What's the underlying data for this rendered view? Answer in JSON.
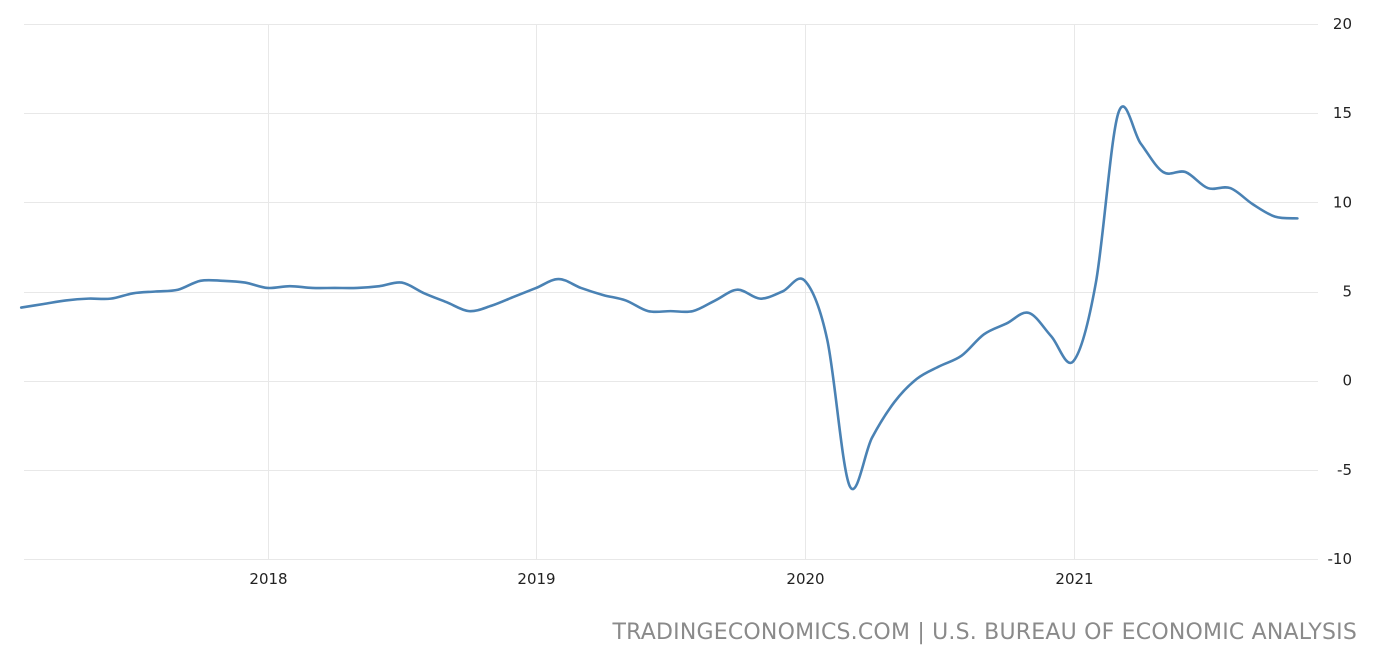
{
  "source_credit": "TRADINGECONOMICS.COM | U.S. BUREAU OF ECONOMIC ANALYSIS",
  "colors": {
    "series": "#4a82b4",
    "grid": "#e8e8e8",
    "tick_text": "#222222",
    "credit_text": "#8a8a8a"
  },
  "chart_data": {
    "type": "line",
    "title": "",
    "xlabel": "",
    "ylabel": "",
    "ylim": [
      -10,
      20
    ],
    "y_ticks": [
      20,
      15,
      10,
      5,
      0,
      -5,
      -10
    ],
    "y_tick_labels": [
      "20",
      "15",
      "10",
      "5",
      "0",
      "-5",
      "-10"
    ],
    "x_range": [
      "2017-02",
      "2021-11"
    ],
    "x_ticks": [
      "2018",
      "2019",
      "2020",
      "2021"
    ],
    "grid": true,
    "legend": "none",
    "series": [
      {
        "x": [
          "2017-02",
          "2017-03",
          "2017-04",
          "2017-05",
          "2017-06",
          "2017-07",
          "2017-08",
          "2017-09",
          "2017-10",
          "2017-11",
          "2017-12",
          "2018-01",
          "2018-02",
          "2018-03",
          "2018-04",
          "2018-05",
          "2018-06",
          "2018-07",
          "2018-08",
          "2018-09",
          "2018-10",
          "2018-11",
          "2018-12",
          "2019-01",
          "2019-02",
          "2019-03",
          "2019-04",
          "2019-05",
          "2019-06",
          "2019-07",
          "2019-08",
          "2019-09",
          "2019-10",
          "2019-11",
          "2019-12",
          "2020-01",
          "2020-02",
          "2020-03",
          "2020-04",
          "2020-05",
          "2020-06",
          "2020-07",
          "2020-08",
          "2020-09",
          "2020-10",
          "2020-11",
          "2020-12",
          "2021-01",
          "2021-02",
          "2021-03",
          "2021-04",
          "2021-05",
          "2021-06",
          "2021-07",
          "2021-08",
          "2021-09",
          "2021-10",
          "2021-11"
        ],
        "values": [
          4.1,
          4.3,
          4.5,
          4.6,
          4.6,
          4.9,
          5.0,
          5.1,
          5.6,
          5.6,
          5.5,
          5.2,
          5.3,
          5.2,
          5.2,
          5.2,
          5.3,
          5.5,
          4.9,
          4.4,
          3.9,
          4.2,
          4.7,
          5.2,
          5.7,
          5.2,
          4.8,
          4.5,
          3.9,
          3.9,
          3.9,
          4.5,
          5.1,
          4.6,
          5.0,
          5.6,
          2.3,
          -5.9,
          -3.2,
          -1.2,
          0.1,
          0.8,
          1.4,
          2.6,
          3.2,
          3.8,
          2.5,
          1.1,
          5.5,
          15.0,
          13.3,
          11.7,
          11.7,
          10.8,
          10.8,
          9.9,
          9.2,
          9.1
        ]
      }
    ]
  }
}
